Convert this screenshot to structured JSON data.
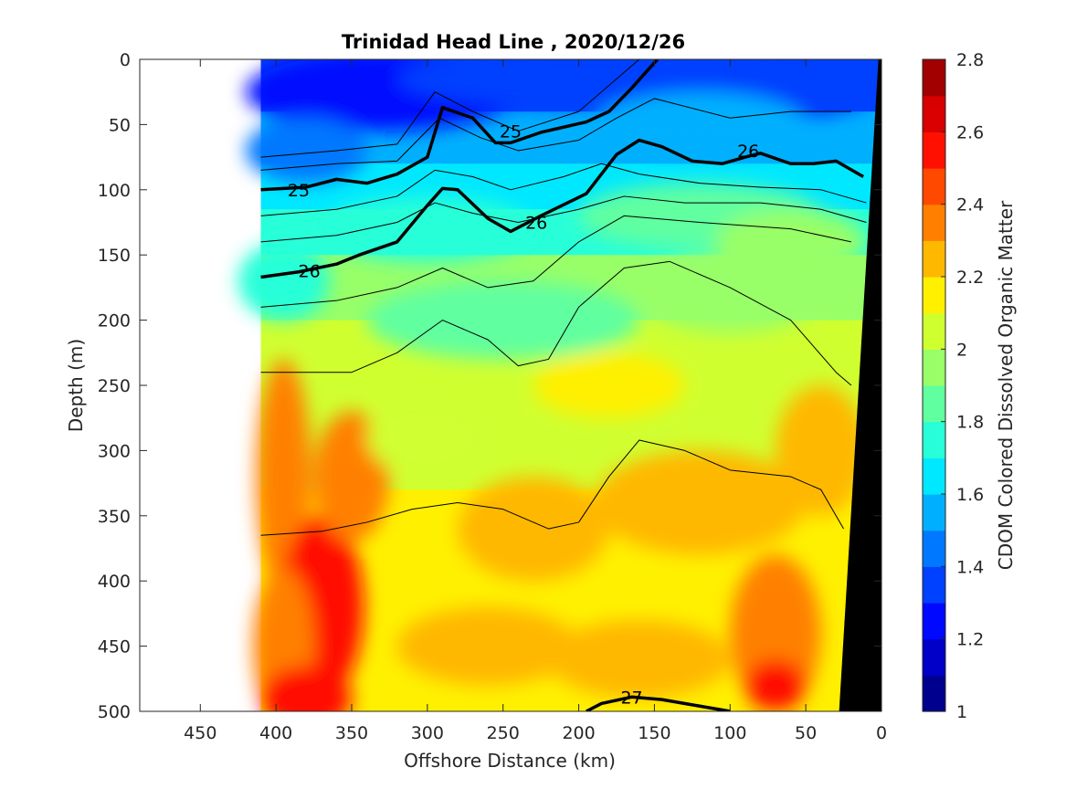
{
  "chart_data": {
    "type": "heatmap",
    "title": "Trinidad Head Line , 2020/12/26",
    "xlabel": "Offshore Distance (km)",
    "ylabel": "Depth (m)",
    "colorbar_label": "CDOM Colored Dissolved Organic Matter",
    "xlim": [
      490,
      0
    ],
    "ylim": [
      500,
      0
    ],
    "x_ticks": [
      450,
      400,
      350,
      300,
      250,
      200,
      150,
      100,
      50,
      0
    ],
    "y_ticks": [
      0,
      50,
      100,
      150,
      200,
      250,
      300,
      350,
      400,
      450,
      500
    ],
    "colorbar_range": [
      1,
      2.8
    ],
    "colorbar_ticks": [
      1,
      1.2,
      1.4,
      1.6,
      1.8,
      2,
      2.2,
      2.4,
      2.6,
      2.8
    ],
    "grid": false,
    "colormap": "jet",
    "data_extent_km": [
      410,
      0
    ],
    "density_contours": [
      {
        "label": "25",
        "bold": true,
        "label_points": [
          [
            245,
            55
          ],
          [
            385,
            100
          ]
        ],
        "points": [
          [
            410,
            100
          ],
          [
            380,
            98
          ],
          [
            360,
            92
          ],
          [
            340,
            95
          ],
          [
            320,
            88
          ],
          [
            300,
            75
          ],
          [
            290,
            37
          ],
          [
            270,
            45
          ],
          [
            255,
            64
          ],
          [
            245,
            64
          ],
          [
            225,
            56
          ],
          [
            210,
            52
          ],
          [
            195,
            48
          ],
          [
            180,
            40
          ],
          [
            165,
            22
          ],
          [
            148,
            0
          ]
        ]
      },
      {
        "label": "26",
        "bold": true,
        "label_points": [
          [
            378,
            162
          ],
          [
            228,
            125
          ],
          [
            88,
            70
          ]
        ],
        "points": [
          [
            410,
            167
          ],
          [
            385,
            163
          ],
          [
            360,
            157
          ],
          [
            345,
            150
          ],
          [
            320,
            140
          ],
          [
            300,
            112
          ],
          [
            290,
            99
          ],
          [
            280,
            100
          ],
          [
            260,
            122
          ],
          [
            245,
            132
          ],
          [
            225,
            120
          ],
          [
            195,
            103
          ],
          [
            175,
            73
          ],
          [
            160,
            62
          ],
          [
            145,
            67
          ],
          [
            125,
            78
          ],
          [
            105,
            80
          ],
          [
            90,
            75
          ],
          [
            80,
            72
          ],
          [
            60,
            80
          ],
          [
            45,
            80
          ],
          [
            30,
            78
          ],
          [
            12,
            90
          ]
        ]
      },
      {
        "label": "27",
        "bold": true,
        "label_points": [
          [
            165,
            489
          ]
        ],
        "points": [
          [
            195,
            500
          ],
          [
            185,
            494
          ],
          [
            165,
            489
          ],
          [
            145,
            491
          ],
          [
            125,
            495
          ],
          [
            100,
            500
          ]
        ]
      }
    ],
    "colorbar_colors": [
      "#00008f",
      "#0000c8",
      "#0008ff",
      "#0040ff",
      "#0078ff",
      "#00b0ff",
      "#00e8ff",
      "#28ffd8",
      "#60ffa0",
      "#98ff68",
      "#d0ff30",
      "#fff000",
      "#ffb800",
      "#ff8000",
      "#ff4800",
      "#ff1000",
      "#d80000",
      "#a00000"
    ]
  }
}
